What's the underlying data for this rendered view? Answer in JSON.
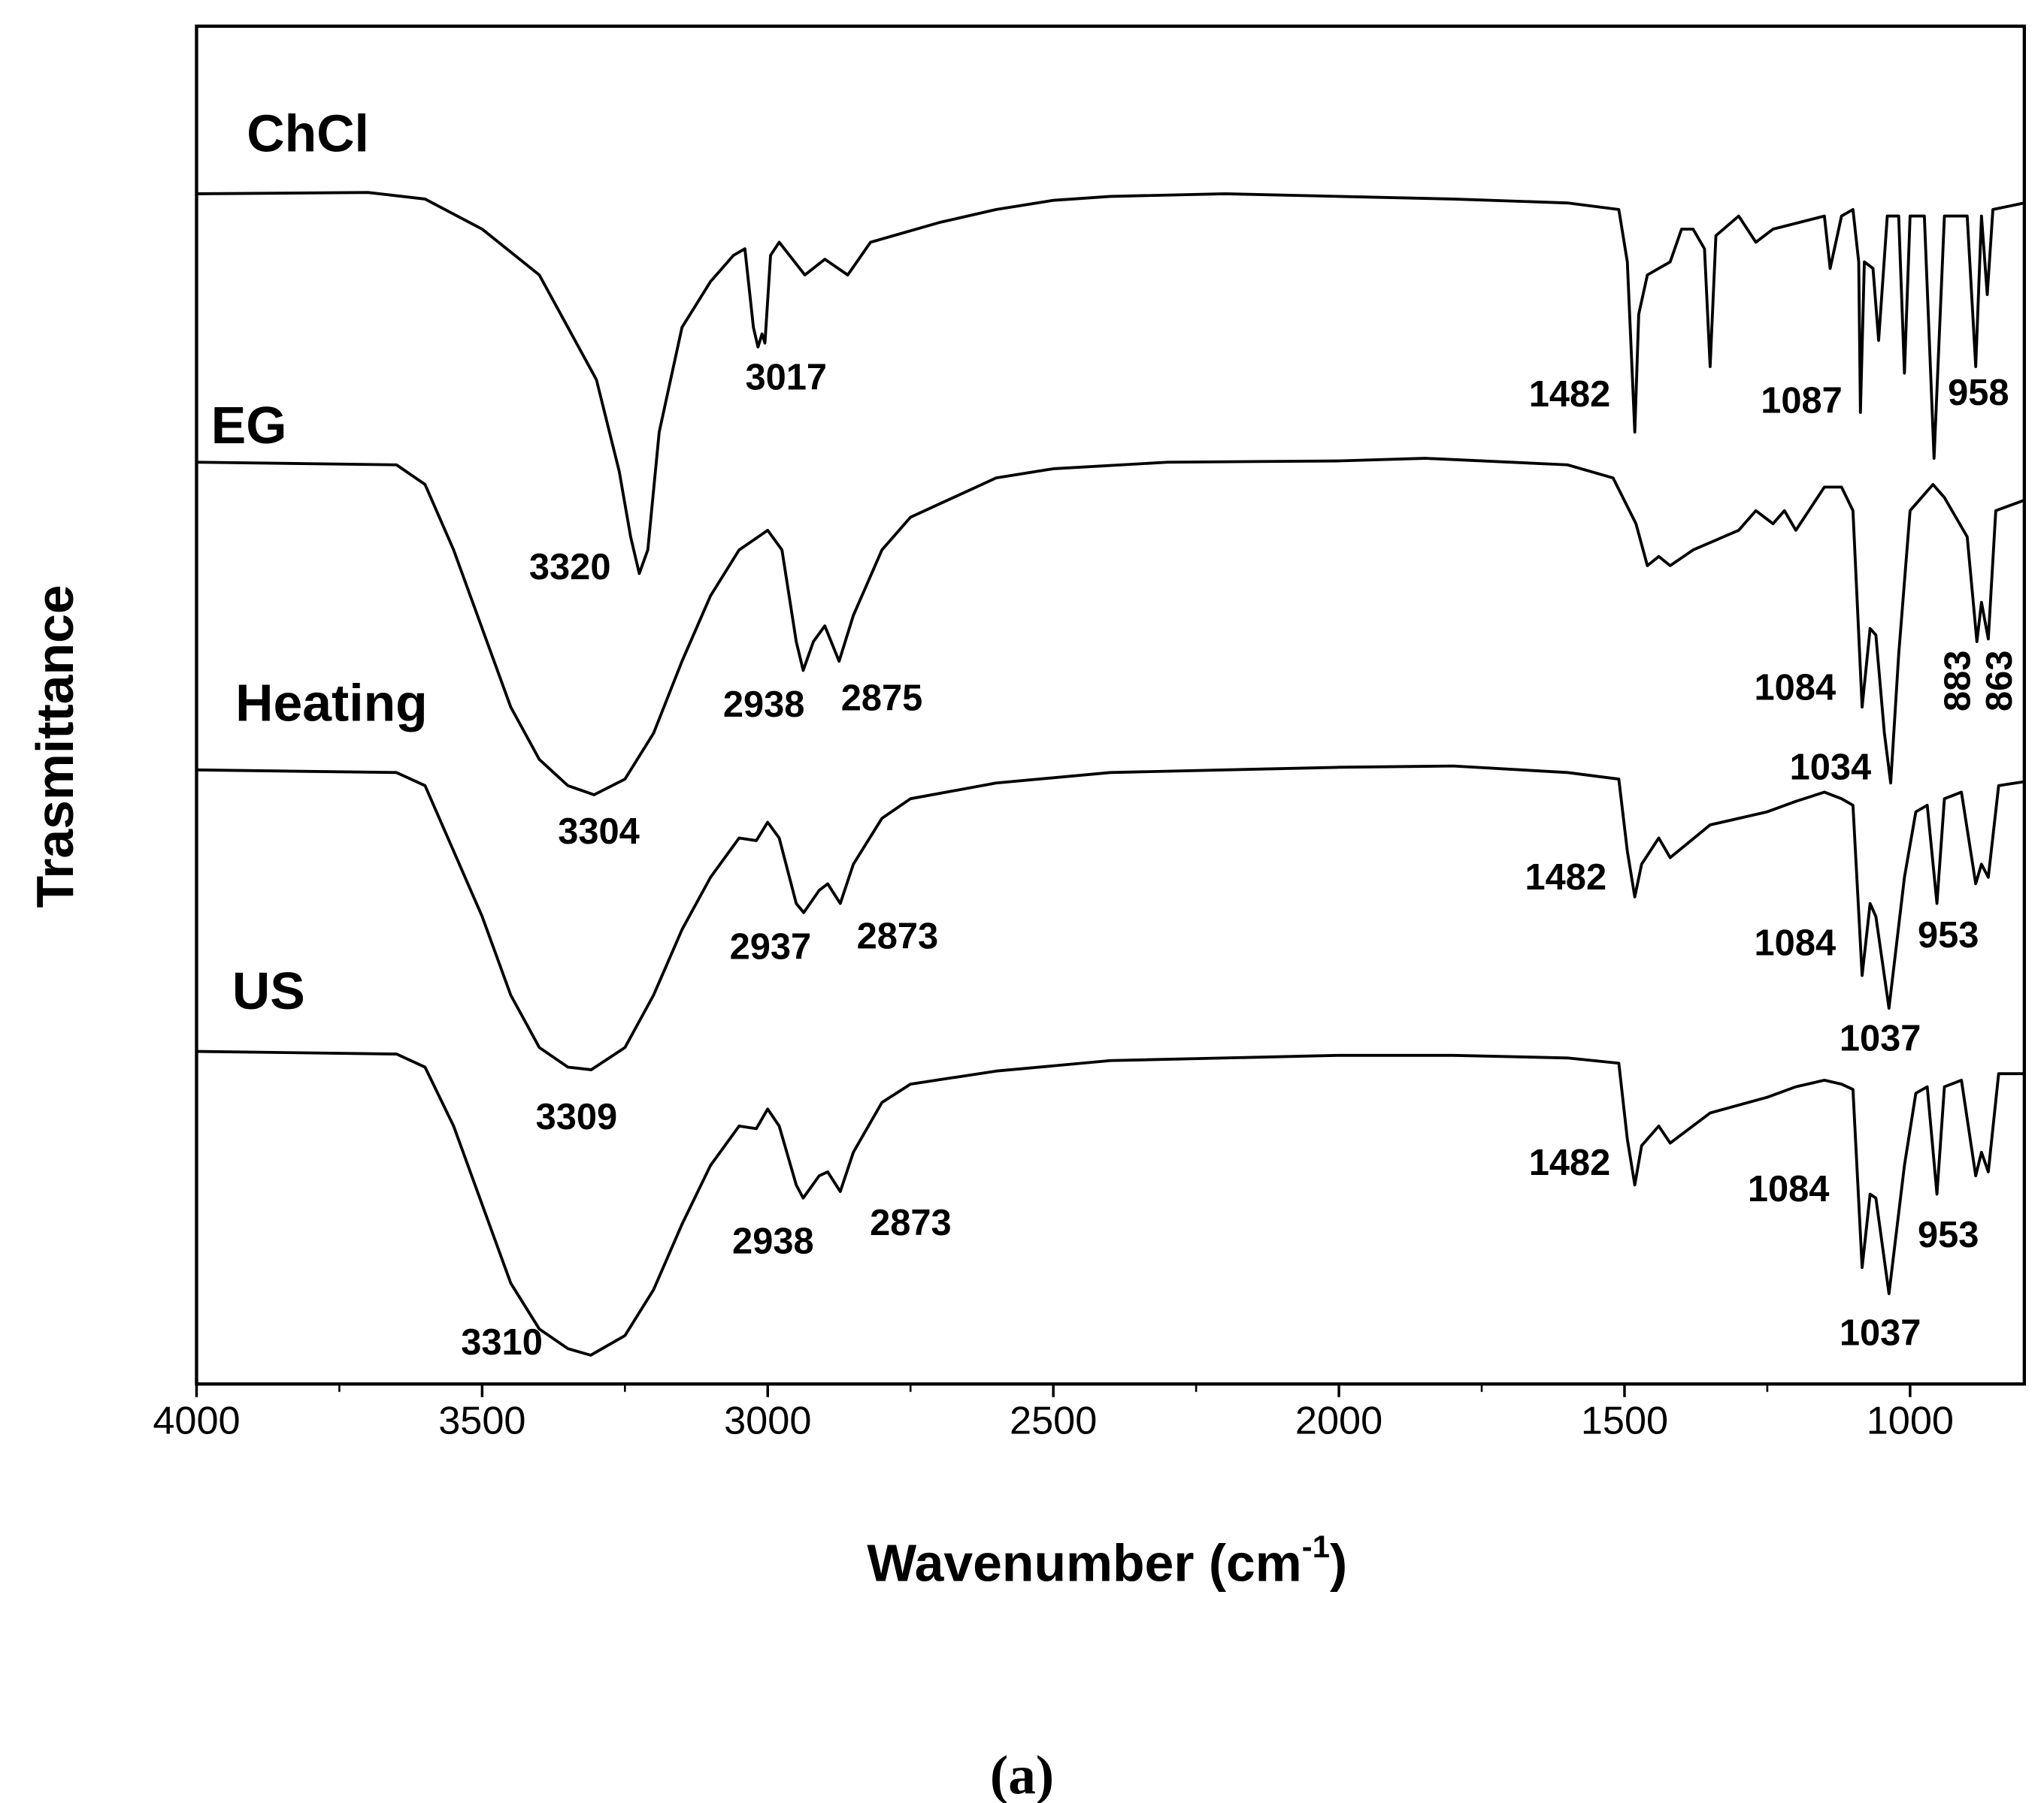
{
  "chart_data": {
    "type": "line",
    "xlabel": "Wavenumber (cm",
    "xlabel_superscript": "-1",
    "xlabel_suffix": ")",
    "ylabel": "Trasmittance",
    "caption": "(a)",
    "xlim": [
      4000,
      800
    ],
    "ylim": [
      0,
      1037
    ],
    "xticks": [
      4000,
      3500,
      3000,
      2500,
      2000,
      1500,
      1000
    ],
    "color": "#000000",
    "series": [
      {
        "name": "ChCl",
        "color": "#000000",
        "x": [
          4000,
          3700,
          3600,
          3500,
          3400,
          3350,
          3300,
          3260,
          3240,
          3225,
          3210,
          3190,
          3150,
          3100,
          3060,
          3040,
          3025,
          3017,
          3010,
          3005,
          2995,
          2980,
          2935,
          2900,
          2860,
          2820,
          2780,
          2700,
          2600,
          2500,
          2400,
          2200,
          2000,
          1800,
          1600,
          1510,
          1495,
          1482,
          1475,
          1460,
          1420,
          1400,
          1380,
          1360,
          1350,
          1340,
          1300,
          1270,
          1240,
          1150,
          1140,
          1120,
          1100,
          1090,
          1087,
          1080,
          1065,
          1055,
          1040,
          1020,
          1010,
          1000,
          975,
          958,
          940,
          900,
          885,
          875,
          865,
          855,
          800
        ],
        "values": [
          909,
          910,
          905,
          882,
          847,
          807,
          767,
          697,
          647,
          619,
          637,
          727,
          807,
          842,
          862,
          867,
          807,
          792,
          802,
          795,
          862,
          872,
          847,
          859,
          847,
          872,
          877,
          887,
          897,
          904,
          907,
          909,
          907,
          905,
          902,
          897,
          857,
          727,
          817,
          847,
          857,
          882,
          882,
          867,
          777,
          877,
          892,
          872,
          882,
          892,
          852,
          892,
          897,
          857,
          742,
          857,
          852,
          797,
          892,
          892,
          772,
          892,
          892,
          707,
          892,
          892,
          777,
          892,
          832,
          897,
          902
        ]
      },
      {
        "name": "EG",
        "color": "#000000",
        "x": [
          4000,
          3650,
          3600,
          3550,
          3500,
          3450,
          3400,
          3350,
          3304,
          3250,
          3200,
          3150,
          3100,
          3050,
          3000,
          2975,
          2950,
          2938,
          2920,
          2900,
          2875,
          2850,
          2800,
          2750,
          2700,
          2600,
          2500,
          2300,
          2000,
          1850,
          1600,
          1520,
          1480,
          1460,
          1440,
          1420,
          1380,
          1300,
          1270,
          1240,
          1220,
          1200,
          1150,
          1120,
          1100,
          1084,
          1070,
          1060,
          1045,
          1034,
          1020,
          1000,
          960,
          940,
          900,
          883,
          875,
          863,
          850,
          800
        ],
        "values": [
          704,
          702,
          687,
          637,
          577,
          517,
          477,
          457,
          450,
          462,
          497,
          552,
          602,
          637,
          652,
          637,
          567,
          545,
          567,
          579,
          552,
          587,
          637,
          662,
          672,
          692,
          699,
          704,
          705,
          707,
          702,
          692,
          657,
          625,
          632,
          625,
          637,
          652,
          667,
          657,
          667,
          652,
          685,
          685,
          667,
          517,
          577,
          572,
          497,
          459,
          557,
          667,
          687,
          677,
          647,
          567,
          597,
          569,
          667,
          675
        ]
      },
      {
        "name": "Heating",
        "color": "#000000",
        "x": [
          4000,
          3650,
          3600,
          3550,
          3500,
          3450,
          3400,
          3350,
          3309,
          3250,
          3200,
          3150,
          3100,
          3050,
          3020,
          3000,
          2980,
          2950,
          2937,
          2910,
          2895,
          2873,
          2850,
          2800,
          2750,
          2600,
          2400,
          2000,
          1800,
          1600,
          1510,
          1495,
          1482,
          1470,
          1440,
          1420,
          1350,
          1250,
          1200,
          1150,
          1120,
          1100,
          1084,
          1070,
          1060,
          1037,
          1010,
          990,
          970,
          953,
          940,
          910,
          885,
          875,
          863,
          845,
          800
        ],
        "values": [
          469,
          467,
          457,
          407,
          357,
          297,
          257,
          242,
          240,
          257,
          297,
          347,
          387,
          417,
          415,
          429,
          417,
          367,
          360,
          377,
          382,
          367,
          397,
          432,
          447,
          459,
          467,
          471,
          472,
          467,
          462,
          407,
          372,
          397,
          417,
          402,
          427,
          437,
          445,
          452,
          447,
          442,
          312,
          367,
          357,
          287,
          387,
          437,
          442,
          367,
          447,
          452,
          382,
          397,
          387,
          457,
          460
        ]
      },
      {
        "name": "US",
        "color": "#000000",
        "x": [
          4000,
          3650,
          3600,
          3550,
          3500,
          3450,
          3400,
          3350,
          3310,
          3250,
          3200,
          3150,
          3100,
          3050,
          3020,
          3000,
          2980,
          2950,
          2938,
          2910,
          2895,
          2873,
          2850,
          2800,
          2750,
          2600,
          2400,
          2000,
          1800,
          1600,
          1510,
          1495,
          1482,
          1470,
          1440,
          1420,
          1350,
          1250,
          1200,
          1150,
          1120,
          1100,
          1084,
          1070,
          1060,
          1037,
          1010,
          990,
          970,
          953,
          940,
          910,
          885,
          875,
          863,
          845,
          800
        ],
        "values": [
          254,
          252,
          242,
          197,
          137,
          77,
          42,
          27,
          22,
          37,
          72,
          122,
          167,
          197,
          195,
          210,
          197,
          152,
          142,
          159,
          162,
          147,
          177,
          215,
          229,
          239,
          247,
          251,
          251,
          249,
          245,
          187,
          152,
          182,
          197,
          184,
          207,
          219,
          227,
          232,
          229,
          225,
          89,
          145,
          142,
          69,
          167,
          222,
          227,
          145,
          227,
          232,
          159,
          177,
          162,
          237,
          237
        ]
      }
    ],
    "annotations": [
      "3017",
      "3320",
      "1482",
      "1087",
      "958",
      "3304",
      "2938",
      "2875",
      "1084",
      "1034",
      "883",
      "863",
      "1482",
      "2937",
      "2873",
      "3309",
      "1084",
      "953",
      "1037",
      "1482",
      "2938",
      "2873",
      "3310",
      "1084",
      "953",
      "1037"
    ]
  }
}
